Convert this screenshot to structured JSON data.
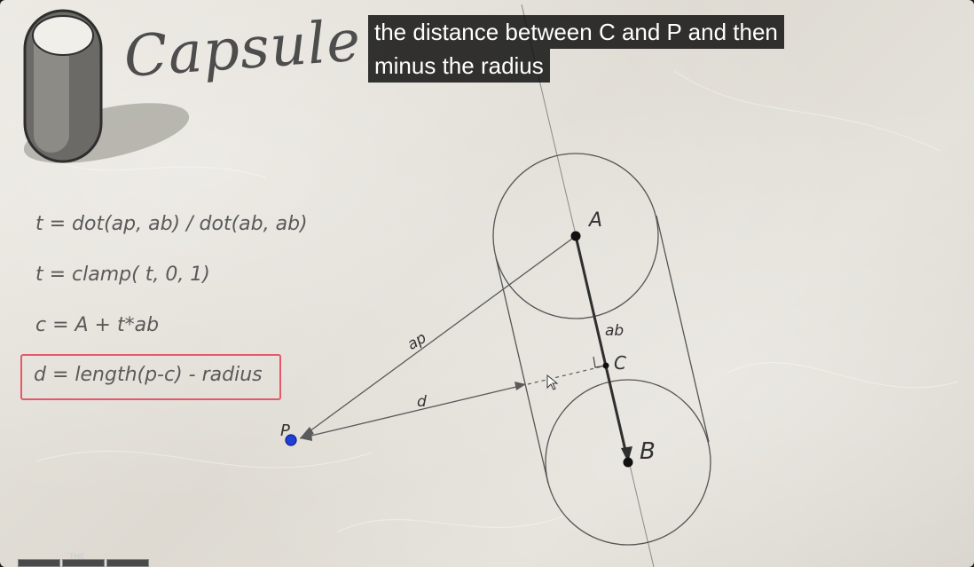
{
  "title": "Capsule",
  "caption": {
    "line1": "the distance between C and P and then",
    "line2": "minus the radius"
  },
  "formulas": [
    "t = dot(ap, ab) / dot(ab, ab)",
    "t = clamp( t, 0, 1)",
    "c = A + t*ab",
    "d = length(p-c) - radius"
  ],
  "diagram": {
    "labels": {
      "A": "A",
      "B": "B",
      "C": "C",
      "P": "P",
      "ab": "ab",
      "ap": "ap",
      "d": "d"
    },
    "colors": {
      "ink": "#4a4a4a",
      "point_p": "#1f3fd6",
      "highlight": "#e5586a"
    }
  },
  "thumbnail_label": "THE",
  "icons": [
    "capsule-icon",
    "cursor-icon"
  ]
}
